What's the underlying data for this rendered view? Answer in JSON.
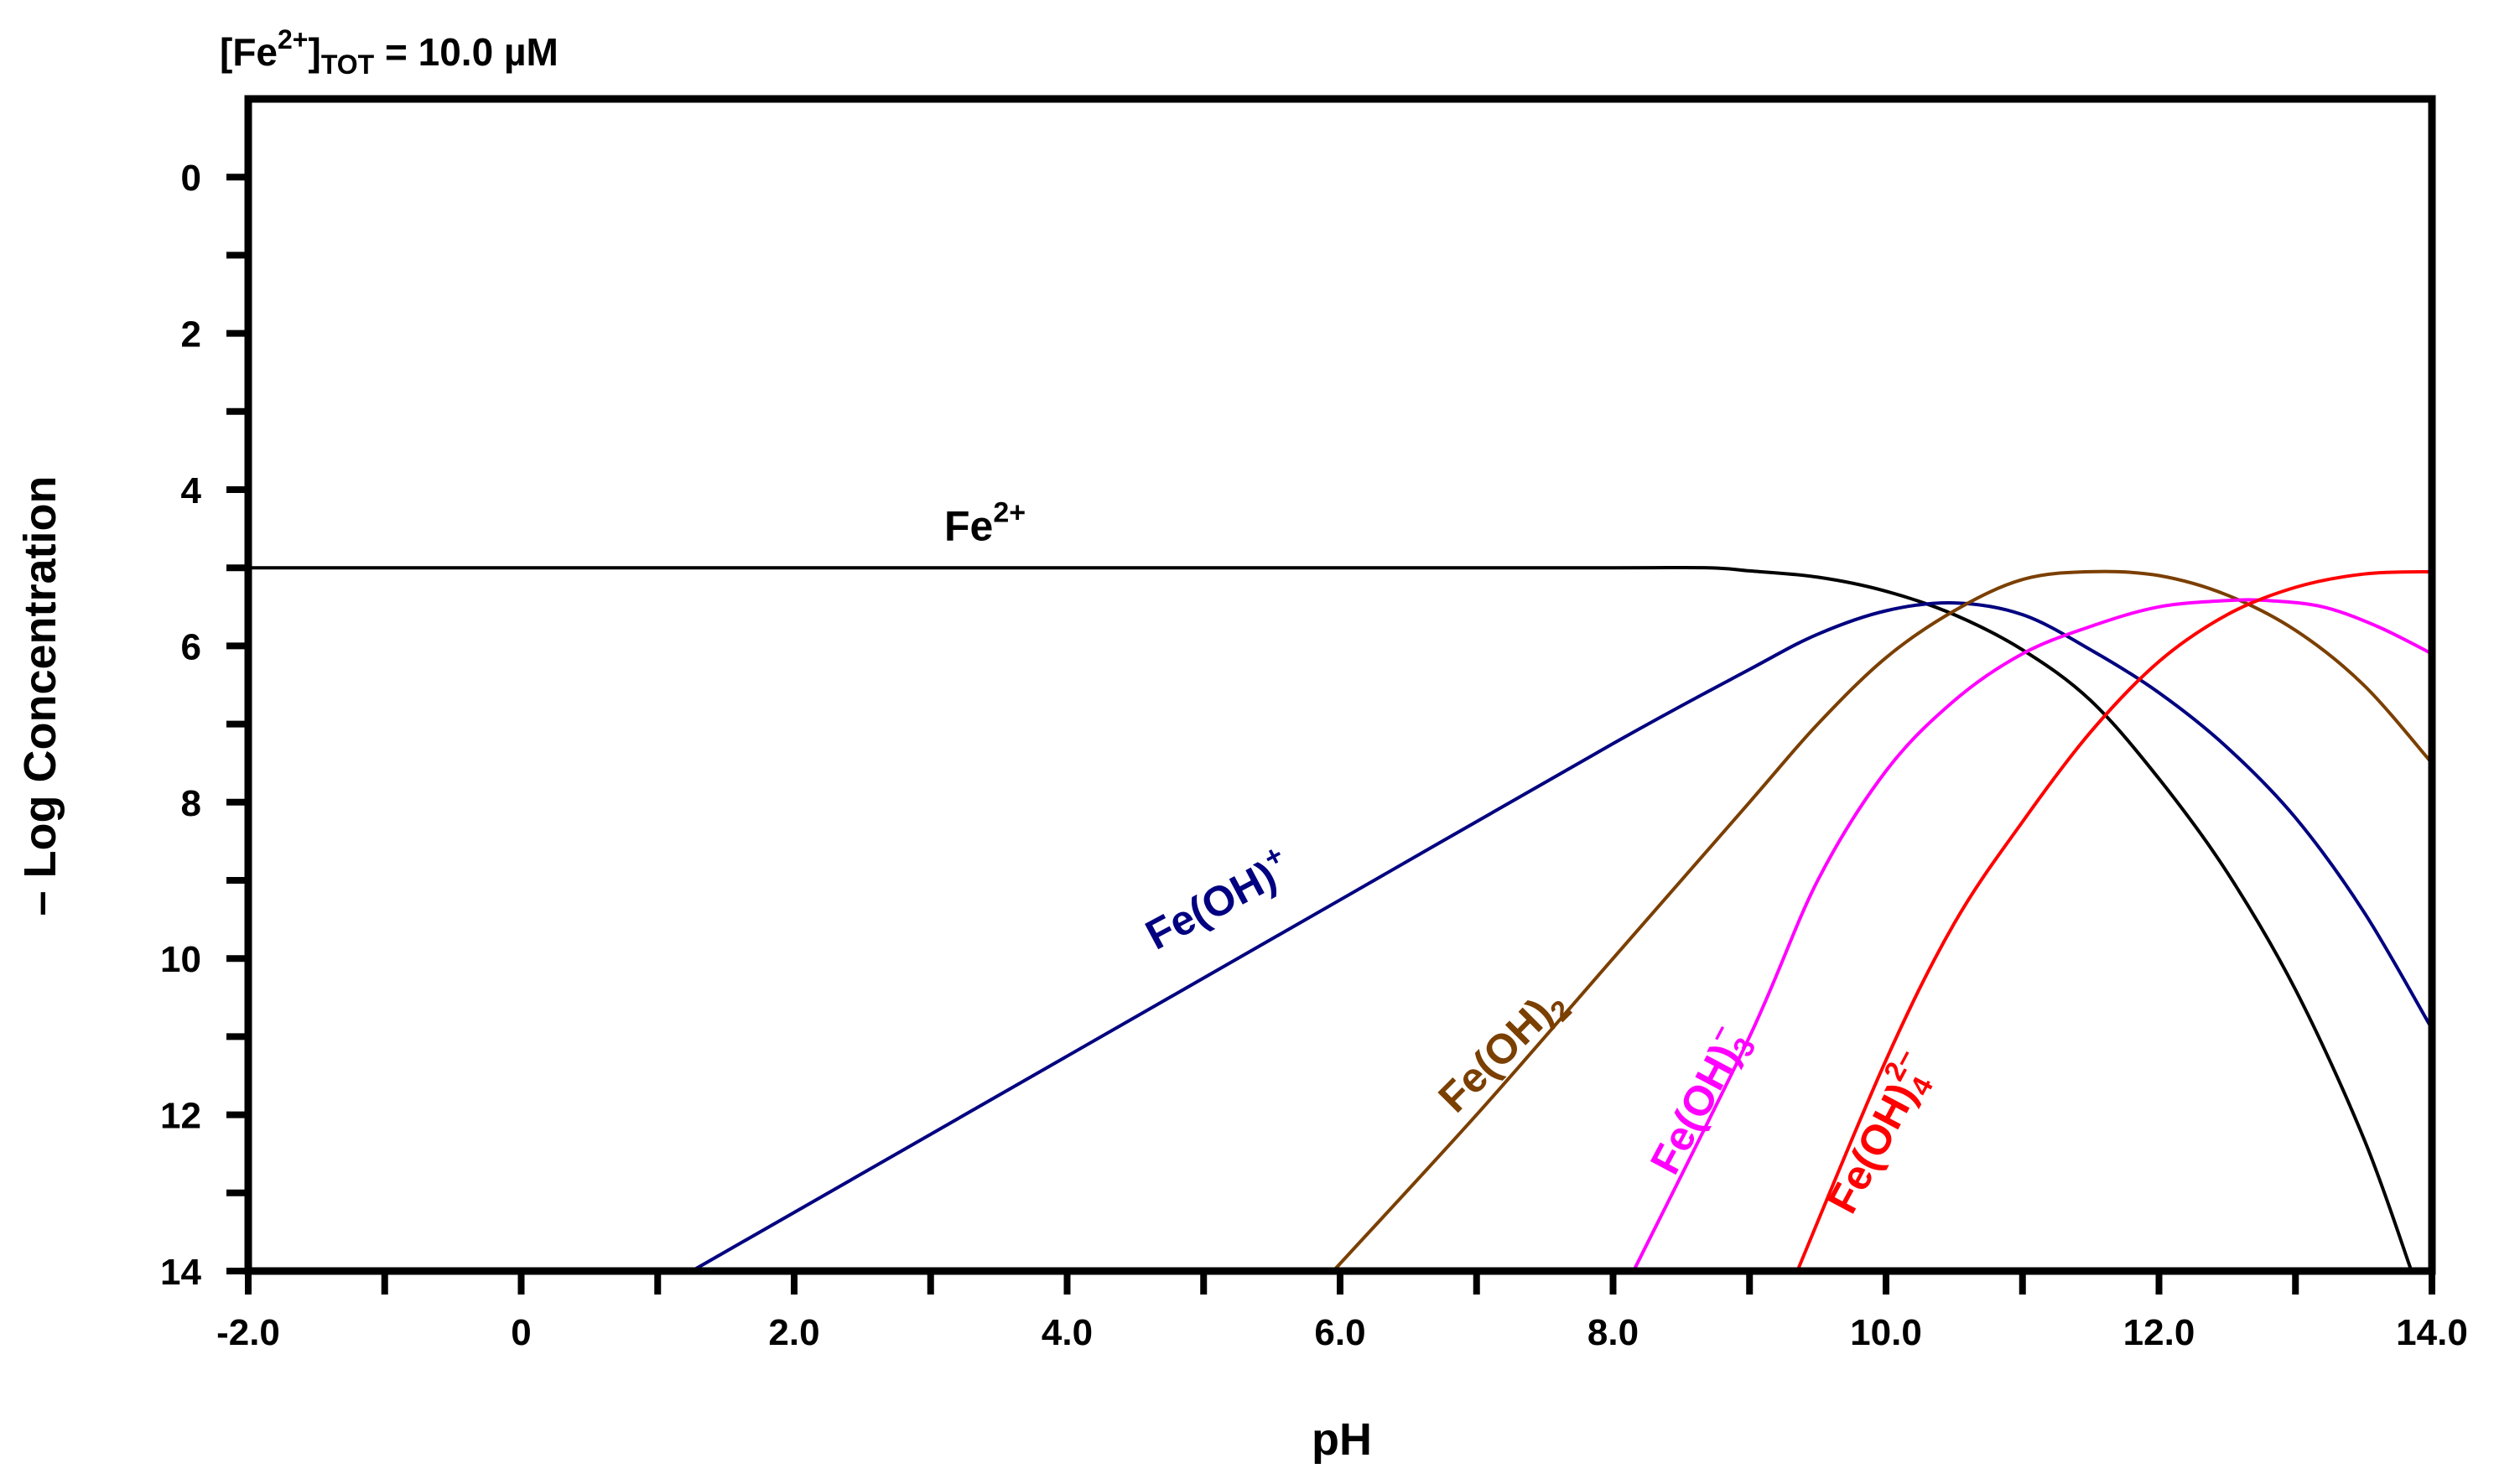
{
  "chart_data": {
    "type": "line",
    "title_parts": {
      "base": "[Fe",
      "sup": "2+",
      "close": "]",
      "sub": "TOT",
      "rest": " = 10.0 µM"
    },
    "xlabel": "pH",
    "ylabel": "– Log Concentration",
    "xlim": [
      -2,
      14
    ],
    "ylim": [
      14,
      -1
    ],
    "y_inverted": true,
    "grid": false,
    "x_ticks": [
      -2,
      -1,
      0,
      1,
      2,
      3,
      4,
      5,
      6,
      7,
      8,
      9,
      10,
      11,
      12,
      13,
      14
    ],
    "x_tick_labels": [
      {
        "value": -2,
        "label": "-2.0"
      },
      {
        "value": 0,
        "label": "0"
      },
      {
        "value": 2,
        "label": "2.0"
      },
      {
        "value": 4,
        "label": "4.0"
      },
      {
        "value": 6,
        "label": "6.0"
      },
      {
        "value": 8,
        "label": "8.0"
      },
      {
        "value": 10,
        "label": "10.0"
      },
      {
        "value": 12,
        "label": "12.0"
      },
      {
        "value": 14,
        "label": "14.0"
      }
    ],
    "y_ticks": [
      0,
      1,
      2,
      3,
      4,
      5,
      6,
      7,
      8,
      9,
      10,
      11,
      12,
      13,
      14
    ],
    "y_tick_labels": [
      {
        "value": 0,
        "label": "0"
      },
      {
        "value": 2,
        "label": "2"
      },
      {
        "value": 4,
        "label": "4"
      },
      {
        "value": 6,
        "label": "6"
      },
      {
        "value": 8,
        "label": "8"
      },
      {
        "value": 10,
        "label": "10"
      },
      {
        "value": 12,
        "label": "12"
      },
      {
        "value": 14,
        "label": "14"
      }
    ],
    "series": [
      {
        "id": "fe2",
        "color": "#000000",
        "x": [
          -2,
          2,
          4,
          6,
          8,
          8.7,
          9,
          9.5,
          10,
          10.5,
          11,
          11.5,
          12,
          12.5,
          13,
          13.5,
          13.85
        ],
        "y": [
          5.0,
          5.0,
          5.0,
          5.0,
          5.0,
          5.0,
          5.04,
          5.12,
          5.3,
          5.6,
          6.05,
          6.7,
          7.7,
          8.9,
          10.4,
          12.3,
          14.0
        ]
      },
      {
        "id": "feoh",
        "color": "#000080",
        "x": [
          1.25,
          2,
          4,
          6,
          8,
          9,
          9.5,
          10,
          10.5,
          11,
          11.5,
          12,
          12.5,
          13,
          13.5,
          14
        ],
        "y": [
          14.0,
          13.25,
          11.25,
          9.25,
          7.25,
          6.3,
          5.85,
          5.55,
          5.45,
          5.6,
          6.05,
          6.6,
          7.3,
          8.2,
          9.4,
          10.9
        ]
      },
      {
        "id": "feoh2",
        "color": "#7B3F00",
        "x": [
          5.95,
          7,
          8,
          9,
          9.5,
          10,
          10.5,
          11,
          11.5,
          12,
          12.5,
          13,
          13.5,
          14
        ],
        "y": [
          14.0,
          12.0,
          10.0,
          8.0,
          7.0,
          6.15,
          5.55,
          5.15,
          5.05,
          5.1,
          5.35,
          5.8,
          6.5,
          7.5
        ]
      },
      {
        "id": "feoh3",
        "color": "#FF00FF",
        "x": [
          8.15,
          9,
          9.5,
          10,
          10.5,
          11,
          11.5,
          12,
          12.5,
          12.8,
          13.2,
          13.6,
          14
        ],
        "y": [
          14.0,
          11.0,
          9.0,
          7.6,
          6.7,
          6.1,
          5.75,
          5.5,
          5.42,
          5.42,
          5.5,
          5.75,
          6.1
        ]
      },
      {
        "id": "feoh4",
        "color": "#FF0000",
        "x": [
          9.35,
          10,
          10.5,
          11,
          11.5,
          12,
          12.5,
          13,
          13.5,
          14
        ],
        "y": [
          14.0,
          11.3,
          9.55,
          8.25,
          7.1,
          6.2,
          5.6,
          5.25,
          5.08,
          5.05
        ]
      }
    ],
    "annotations": [
      {
        "id": "fe2",
        "base": "Fe",
        "sub": "",
        "sup": "2+",
        "color": "#000000",
        "x": 3.1,
        "y": 4.65,
        "angle": 0
      },
      {
        "id": "feoh",
        "base": "Fe(OH)",
        "sub": "",
        "sup": "+",
        "color": "#000080",
        "x": 4.65,
        "y": 9.9,
        "angle": -28
      },
      {
        "id": "feoh2",
        "base": "Fe(OH)",
        "sub": "2",
        "sup": "",
        "color": "#7B3F00",
        "x": 6.85,
        "y": 12.0,
        "angle": -45
      },
      {
        "id": "feoh3",
        "base": "Fe(OH)",
        "sub": "3",
        "sup": "–",
        "color": "#FF00FF",
        "x": 8.45,
        "y": 12.8,
        "angle": -62
      },
      {
        "id": "feoh4",
        "base": "Fe(OH)",
        "sub": "4",
        "sup": "2–",
        "color": "#FF0000",
        "x": 9.75,
        "y": 13.3,
        "angle": -62
      }
    ]
  }
}
